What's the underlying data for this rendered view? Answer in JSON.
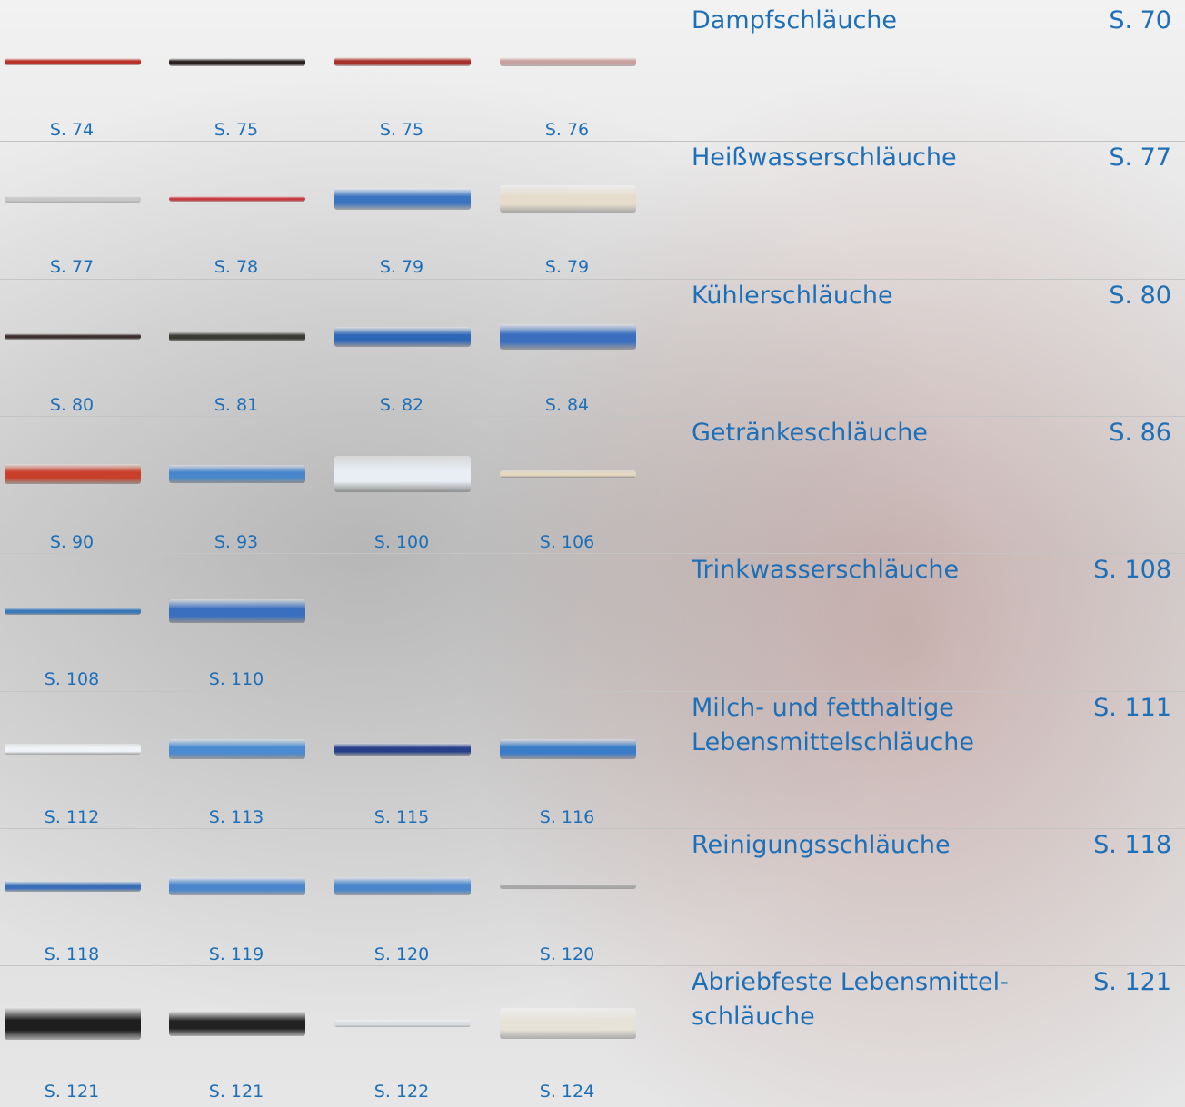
{
  "rows": [
    {
      "title_lines": [
        "Dampfschläuche"
      ],
      "page": "S. 70",
      "products": [
        {
          "label": "S. 74"
        },
        {
          "label": "S. 75"
        },
        {
          "label": "S. 75"
        },
        {
          "label": "S. 76"
        }
      ]
    },
    {
      "title_lines": [
        "Heißwasserschläuche"
      ],
      "page": "S. 77",
      "products": [
        {
          "label": "S. 77"
        },
        {
          "label": "S. 78"
        },
        {
          "label": "S. 79"
        },
        {
          "label": "S. 79"
        }
      ]
    },
    {
      "title_lines": [
        "Kühlerschläuche"
      ],
      "page": "S. 80",
      "products": [
        {
          "label": "S. 80"
        },
        {
          "label": "S. 81"
        },
        {
          "label": "S. 82"
        },
        {
          "label": "S. 84"
        }
      ]
    },
    {
      "title_lines": [
        "Getränkeschläuche"
      ],
      "page": "S. 86",
      "products": [
        {
          "label": "S. 90"
        },
        {
          "label": "S. 93"
        },
        {
          "label": "S. 100"
        },
        {
          "label": "S. 106"
        }
      ]
    },
    {
      "title_lines": [
        "Trinkwasserschläuche"
      ],
      "page": "S. 108",
      "products": [
        {
          "label": "S. 108"
        },
        {
          "label": "S. 110"
        }
      ]
    },
    {
      "title_lines": [
        "Milch- und fetthaltige",
        "Lebensmittelschläuche"
      ],
      "page": "S. 111",
      "products": [
        {
          "label": "S. 112"
        },
        {
          "label": "S. 113"
        },
        {
          "label": "S. 115"
        },
        {
          "label": "S. 116"
        }
      ]
    },
    {
      "title_lines": [
        "Reinigungsschläuche"
      ],
      "page": "S. 118",
      "products": [
        {
          "label": "S. 118"
        },
        {
          "label": "S. 119"
        },
        {
          "label": "S. 120"
        },
        {
          "label": "S. 120"
        }
      ]
    },
    {
      "title_lines": [
        "Abriebfeste Lebensmittel-",
        "schläuche"
      ],
      "page": "S. 121",
      "products": [
        {
          "label": "S. 121"
        },
        {
          "label": "S. 121"
        },
        {
          "label": "S. 122"
        },
        {
          "label": "S. 124"
        }
      ]
    }
  ]
}
